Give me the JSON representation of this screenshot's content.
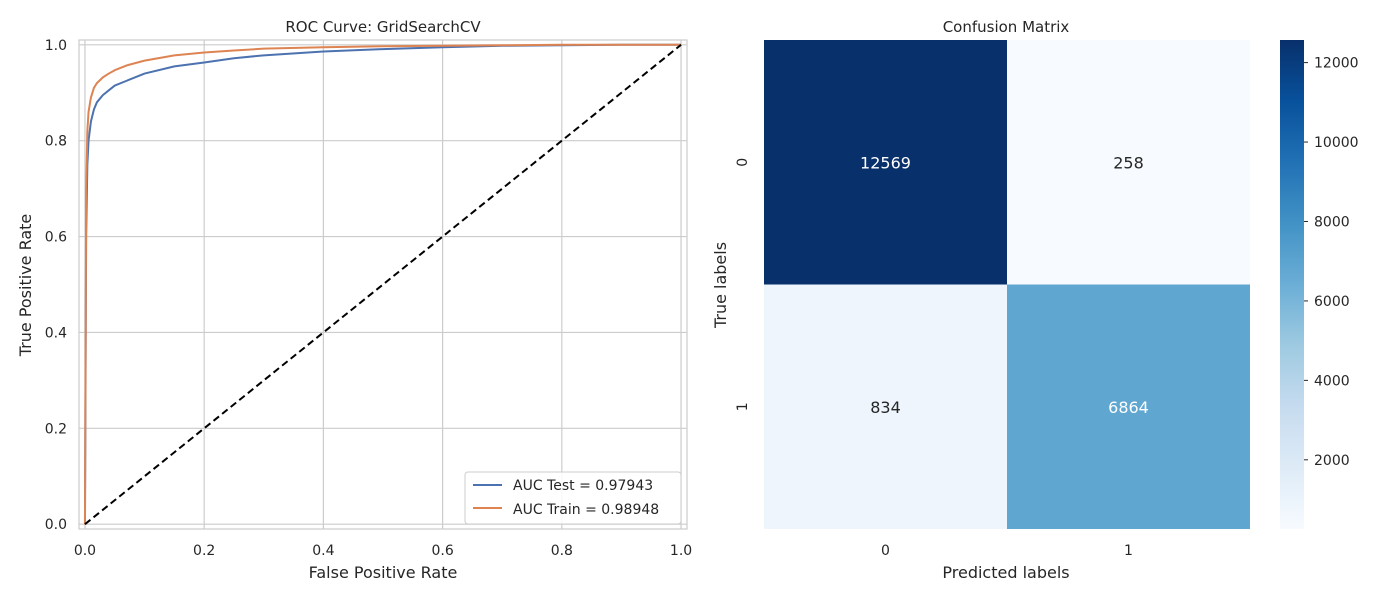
{
  "chart_data": [
    {
      "type": "line",
      "title": "ROC Curve: GridSearchCV",
      "xlabel": "False Positive Rate",
      "ylabel": "True Positive Rate",
      "xlim": [
        0,
        1
      ],
      "ylim": [
        0,
        1
      ],
      "grid": true,
      "legend_position": "bottom-right",
      "xticks": [
        "0.0",
        "0.2",
        "0.4",
        "0.6",
        "0.8",
        "1.0"
      ],
      "yticks": [
        "0.0",
        "0.2",
        "0.4",
        "0.6",
        "0.8",
        "1.0"
      ],
      "series": [
        {
          "name": "AUC Test = 0.97943",
          "color": "#4c72b0",
          "x": [
            0,
            0.002,
            0.004,
            0.006,
            0.01,
            0.015,
            0.02,
            0.03,
            0.04,
            0.05,
            0.07,
            0.1,
            0.15,
            0.2,
            0.25,
            0.3,
            0.4,
            0.5,
            0.6,
            0.7,
            0.8,
            0.9,
            1.0
          ],
          "y": [
            0,
            0.6,
            0.75,
            0.8,
            0.84,
            0.865,
            0.88,
            0.895,
            0.905,
            0.915,
            0.925,
            0.94,
            0.955,
            0.963,
            0.972,
            0.978,
            0.986,
            0.991,
            0.995,
            0.998,
            0.999,
            1.0,
            1.0
          ]
        },
        {
          "name": "AUC Train = 0.98948",
          "color": "#dd8452",
          "x": [
            0,
            0.002,
            0.004,
            0.006,
            0.01,
            0.015,
            0.02,
            0.03,
            0.04,
            0.05,
            0.07,
            0.1,
            0.15,
            0.2,
            0.25,
            0.3,
            0.4,
            0.5,
            0.6,
            0.7,
            0.8,
            0.9,
            1.0
          ],
          "y": [
            0,
            0.7,
            0.82,
            0.86,
            0.89,
            0.91,
            0.92,
            0.932,
            0.94,
            0.947,
            0.957,
            0.967,
            0.978,
            0.984,
            0.988,
            0.992,
            0.995,
            0.997,
            0.998,
            0.999,
            1.0,
            1.0,
            1.0
          ]
        },
        {
          "name": "",
          "color": "#000000",
          "style": "dashed",
          "x": [
            0,
            1
          ],
          "y": [
            0,
            1
          ]
        }
      ]
    },
    {
      "type": "heatmap",
      "title": "Confusion Matrix",
      "xlabel": "Predicted labels",
      "ylabel": "True labels",
      "x_categories": [
        "0",
        "1"
      ],
      "y_categories": [
        "0",
        "1"
      ],
      "values": [
        [
          12569,
          258
        ],
        [
          834,
          6864
        ]
      ],
      "colormap": "Blues",
      "colorbar": {
        "min": 258,
        "max": 12569,
        "ticks": [
          2000,
          4000,
          6000,
          8000,
          10000,
          12000
        ],
        "tick_labels": [
          "2000",
          "4000",
          "6000",
          "8000",
          "10000",
          "12000"
        ]
      }
    }
  ]
}
